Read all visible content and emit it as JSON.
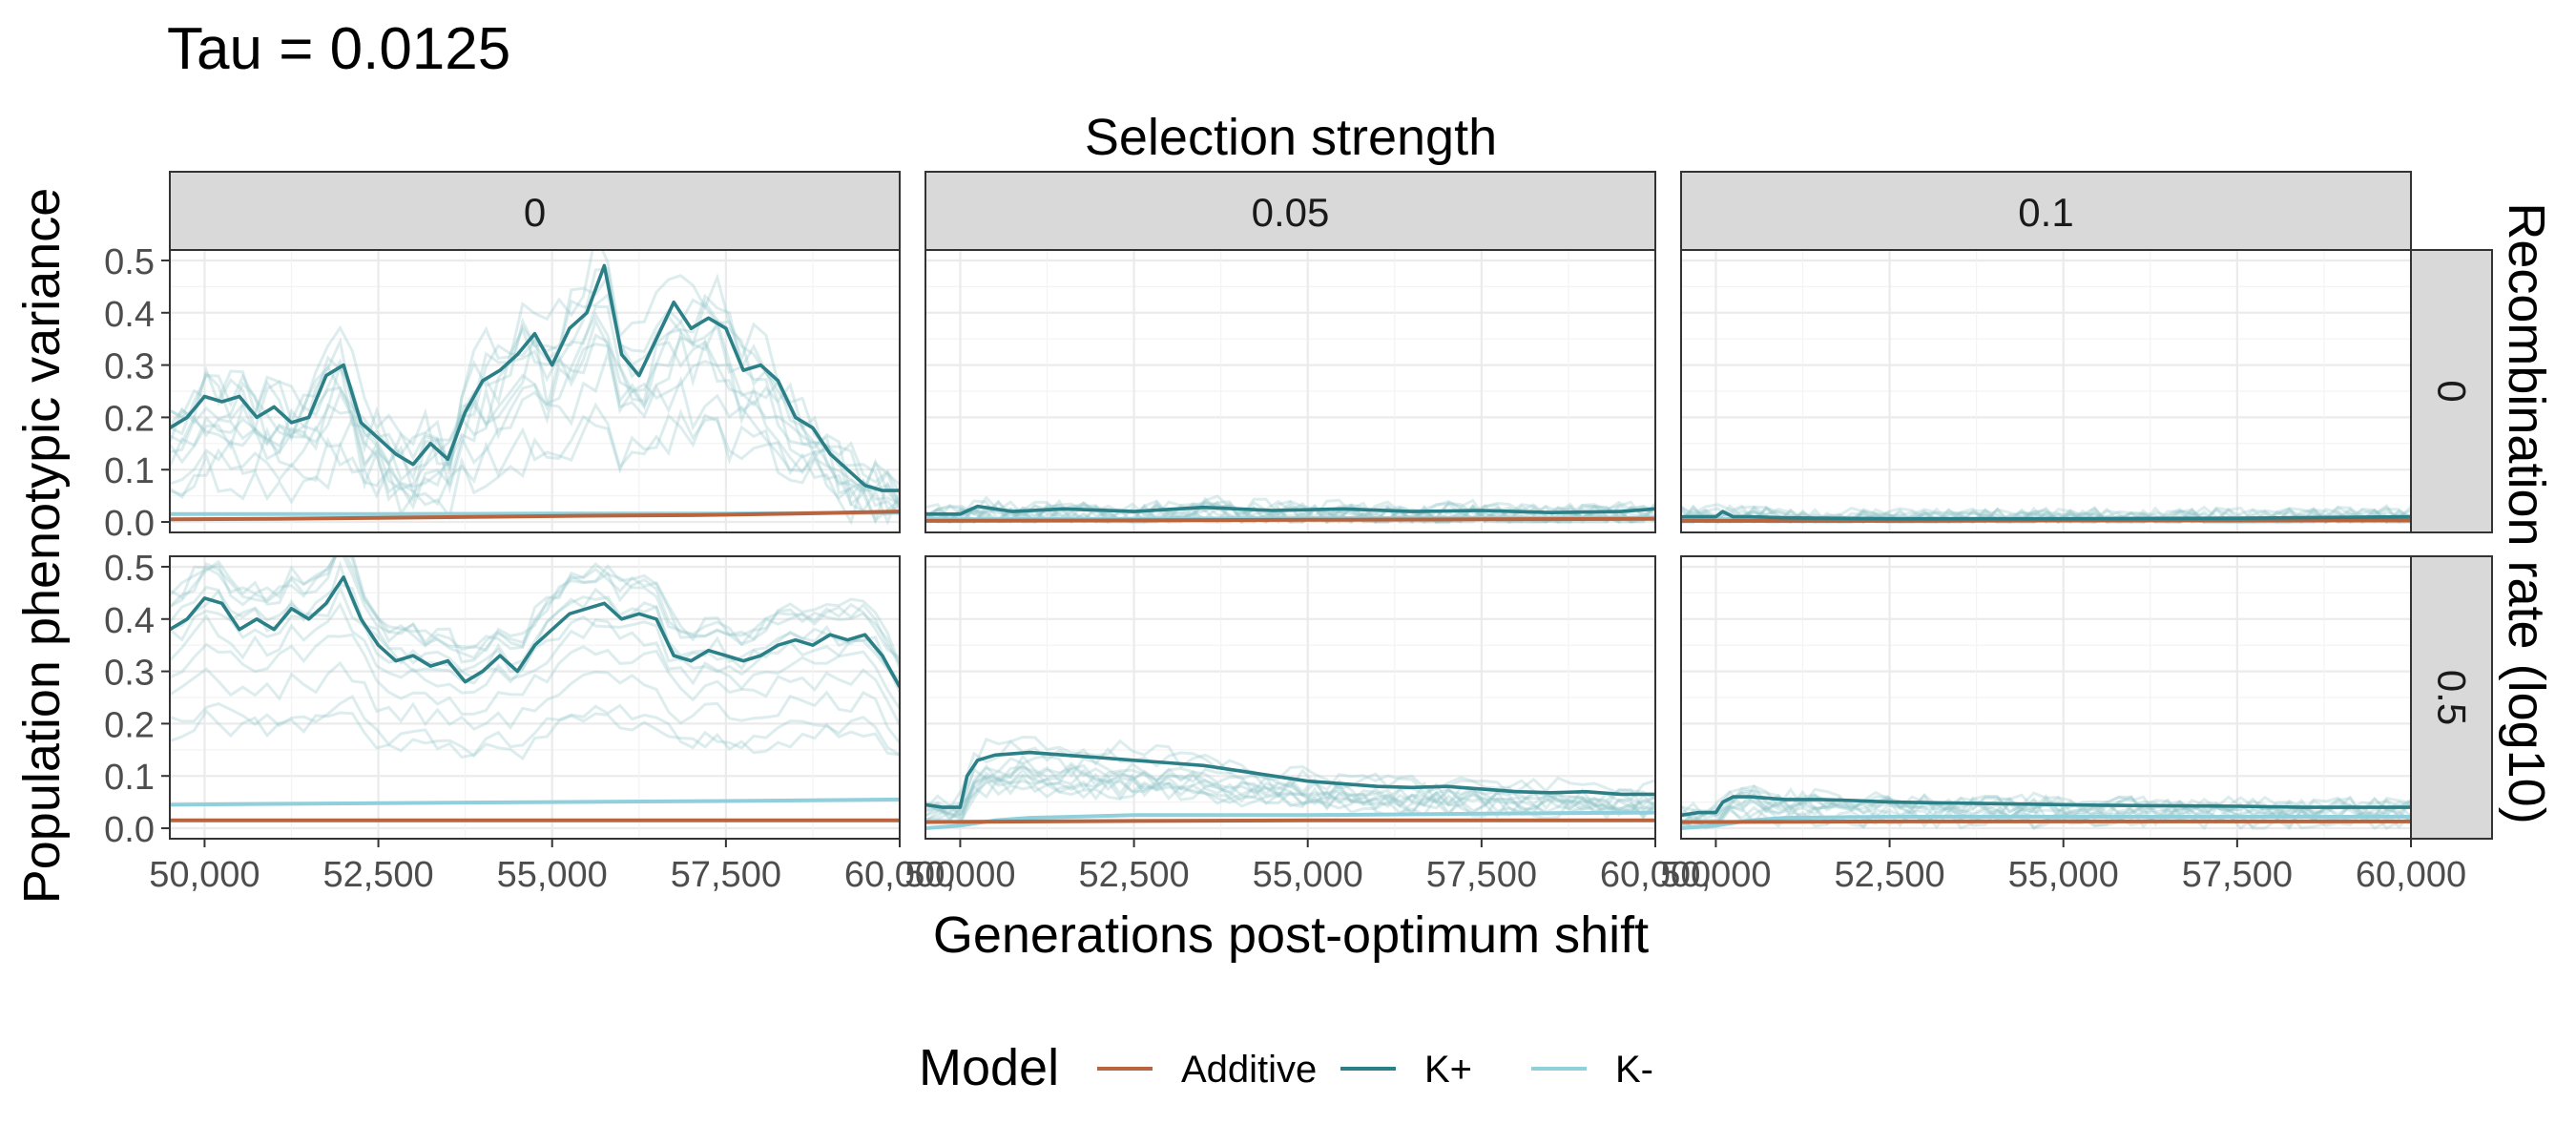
{
  "chart_data": {
    "type": "line",
    "title": "Tau = 0.0125",
    "col_facet_title": "Selection strength",
    "row_facet_title": "Recombination rate (log10)",
    "xlabel": "Generations post-optimum shift",
    "ylabel": "Population phenotypic variance",
    "col_facets": [
      "0",
      "0.05",
      "0.1"
    ],
    "row_facets": [
      "0",
      "0.5"
    ],
    "x_ticks": [
      50000,
      52500,
      55000,
      57500,
      60000
    ],
    "x_tick_labels": [
      "50,000",
      "52,500",
      "55,000",
      "57,500",
      "60,000"
    ],
    "y_ticks": [
      0.0,
      0.1,
      0.2,
      0.3,
      0.4,
      0.5
    ],
    "y_tick_labels": [
      "0.0",
      "0.1",
      "0.2",
      "0.3",
      "0.4",
      "0.5"
    ],
    "xlim": [
      49500,
      60000
    ],
    "ylim": [
      -0.02,
      0.52
    ],
    "grid": true,
    "legend": {
      "position": "bottom",
      "title": "Model",
      "entries": [
        {
          "label": "Additive",
          "color": "#b8643f"
        },
        {
          "label": "K+",
          "color": "#2b7f86"
        },
        {
          "label": "K-",
          "color": "#8fd0dc"
        }
      ]
    },
    "panels": [
      {
        "col": "0",
        "row": "0",
        "series": [
          {
            "name": "K+",
            "x": [
              49500,
              49750,
              50000,
              50250,
              50500,
              50750,
              51000,
              51250,
              51500,
              51750,
              52000,
              52250,
              52500,
              52750,
              53000,
              53250,
              53500,
              53750,
              54000,
              54250,
              54500,
              54750,
              55000,
              55250,
              55500,
              55750,
              56000,
              56250,
              56500,
              56750,
              57000,
              57250,
              57500,
              57750,
              58000,
              58250,
              58500,
              58750,
              59000,
              59250,
              59500,
              59750,
              60000
            ],
            "values": [
              0.18,
              0.2,
              0.24,
              0.23,
              0.24,
              0.2,
              0.22,
              0.19,
              0.2,
              0.28,
              0.3,
              0.19,
              0.16,
              0.13,
              0.11,
              0.15,
              0.12,
              0.21,
              0.27,
              0.29,
              0.32,
              0.36,
              0.3,
              0.37,
              0.4,
              0.49,
              0.32,
              0.28,
              0.35,
              0.42,
              0.37,
              0.39,
              0.37,
              0.29,
              0.3,
              0.27,
              0.2,
              0.18,
              0.13,
              0.1,
              0.07,
              0.06,
              0.06
            ]
          },
          {
            "name": "K-",
            "x": [
              49500,
              52500,
              55000,
              57500,
              60000
            ],
            "values": [
              0.015,
              0.015,
              0.016,
              0.016,
              0.018
            ]
          },
          {
            "name": "Additive",
            "x": [
              49500,
              51000,
              52500,
              54000,
              55500,
              57000,
              58500,
              60000
            ],
            "values": [
              0.005,
              0.006,
              0.008,
              0.01,
              0.012,
              0.013,
              0.016,
              0.02
            ]
          }
        ]
      },
      {
        "col": "0.05",
        "row": "0",
        "series": [
          {
            "name": "K+",
            "x": [
              49500,
              49750,
              50000,
              50250,
              50750,
              51500,
              52500,
              53500,
              54500,
              55500,
              56500,
              57500,
              58500,
              59500,
              60000
            ],
            "values": [
              0.015,
              0.015,
              0.015,
              0.03,
              0.02,
              0.025,
              0.02,
              0.028,
              0.022,
              0.025,
              0.02,
              0.022,
              0.018,
              0.02,
              0.025
            ]
          },
          {
            "name": "K-",
            "x": [
              49500,
              52500,
              55000,
              57500,
              60000
            ],
            "values": [
              0.005,
              0.006,
              0.007,
              0.008,
              0.008
            ]
          },
          {
            "name": "Additive",
            "x": [
              49500,
              52500,
              55000,
              57500,
              60000
            ],
            "values": [
              0.002,
              0.003,
              0.004,
              0.005,
              0.006
            ]
          }
        ]
      },
      {
        "col": "0.1",
        "row": "0",
        "series": [
          {
            "name": "K+",
            "x": [
              49500,
              49750,
              50000,
              50100,
              50250,
              50500,
              51000,
              52500,
              55000,
              57500,
              60000
            ],
            "values": [
              0.01,
              0.01,
              0.01,
              0.02,
              0.01,
              0.01,
              0.008,
              0.006,
              0.006,
              0.007,
              0.01
            ]
          },
          {
            "name": "K-",
            "x": [
              49500,
              52500,
              55000,
              57500,
              60000
            ],
            "values": [
              0.005,
              0.006,
              0.006,
              0.007,
              0.008
            ]
          },
          {
            "name": "Additive",
            "x": [
              49500,
              52500,
              55000,
              57500,
              60000
            ],
            "values": [
              0.002,
              0.002,
              0.003,
              0.003,
              0.003
            ]
          }
        ]
      },
      {
        "col": "0",
        "row": "0.5",
        "series": [
          {
            "name": "K+",
            "x": [
              49500,
              49750,
              50000,
              50250,
              50500,
              50750,
              51000,
              51250,
              51500,
              51750,
              52000,
              52250,
              52500,
              52750,
              53000,
              53250,
              53500,
              53750,
              54000,
              54250,
              54500,
              54750,
              55000,
              55250,
              55500,
              55750,
              56000,
              56250,
              56500,
              56750,
              57000,
              57250,
              57500,
              57750,
              58000,
              58250,
              58500,
              58750,
              59000,
              59250,
              59500,
              59750,
              60000
            ],
            "values": [
              0.38,
              0.4,
              0.44,
              0.43,
              0.38,
              0.4,
              0.38,
              0.42,
              0.4,
              0.43,
              0.48,
              0.4,
              0.35,
              0.32,
              0.33,
              0.31,
              0.32,
              0.28,
              0.3,
              0.33,
              0.3,
              0.35,
              0.38,
              0.41,
              0.42,
              0.43,
              0.4,
              0.41,
              0.4,
              0.33,
              0.32,
              0.34,
              0.33,
              0.32,
              0.33,
              0.35,
              0.36,
              0.35,
              0.37,
              0.36,
              0.37,
              0.33,
              0.27
            ]
          },
          {
            "name": "K-",
            "x": [
              49500,
              52500,
              55000,
              57500,
              60000
            ],
            "values": [
              0.045,
              0.048,
              0.05,
              0.052,
              0.055
            ]
          },
          {
            "name": "Additive",
            "x": [
              49500,
              52500,
              55000,
              57500,
              60000
            ],
            "values": [
              0.015,
              0.015,
              0.015,
              0.015,
              0.015
            ]
          }
        ]
      },
      {
        "col": "0.05",
        "row": "0.5",
        "series": [
          {
            "name": "K+",
            "x": [
              49500,
              49750,
              50000,
              50100,
              50250,
              50500,
              51000,
              51500,
              52000,
              52500,
              53000,
              53500,
              54000,
              54500,
              55000,
              55500,
              56000,
              56500,
              57000,
              57500,
              58000,
              58500,
              59000,
              59500,
              60000
            ],
            "values": [
              0.045,
              0.04,
              0.04,
              0.1,
              0.13,
              0.14,
              0.145,
              0.14,
              0.135,
              0.13,
              0.125,
              0.12,
              0.11,
              0.1,
              0.09,
              0.085,
              0.08,
              0.078,
              0.08,
              0.075,
              0.07,
              0.068,
              0.07,
              0.065,
              0.065
            ]
          },
          {
            "name": "K-",
            "x": [
              49500,
              50000,
              50500,
              51000,
              52500,
              55000,
              57500,
              60000
            ],
            "values": [
              0.0,
              0.005,
              0.015,
              0.02,
              0.025,
              0.025,
              0.028,
              0.03
            ]
          },
          {
            "name": "Additive",
            "x": [
              49500,
              52500,
              55000,
              57500,
              60000
            ],
            "values": [
              0.012,
              0.014,
              0.015,
              0.015,
              0.015
            ]
          }
        ]
      },
      {
        "col": "0.1",
        "row": "0.5",
        "series": [
          {
            "name": "K+",
            "x": [
              49500,
              49750,
              50000,
              50100,
              50250,
              50500,
              51000,
              51500,
              52000,
              52500,
              53500,
              54500,
              55500,
              56500,
              57500,
              58500,
              59500,
              60000
            ],
            "values": [
              0.025,
              0.03,
              0.03,
              0.05,
              0.06,
              0.06,
              0.055,
              0.055,
              0.053,
              0.05,
              0.048,
              0.046,
              0.044,
              0.043,
              0.042,
              0.04,
              0.04,
              0.04
            ]
          },
          {
            "name": "K-",
            "x": [
              49500,
              50000,
              50500,
              51000,
              52500,
              55000,
              57500,
              60000
            ],
            "values": [
              0.0,
              0.005,
              0.015,
              0.02,
              0.022,
              0.022,
              0.022,
              0.022
            ]
          },
          {
            "name": "Additive",
            "x": [
              49500,
              52500,
              55000,
              57500,
              60000
            ],
            "values": [
              0.012,
              0.013,
              0.013,
              0.013,
              0.013
            ]
          }
        ]
      }
    ]
  }
}
